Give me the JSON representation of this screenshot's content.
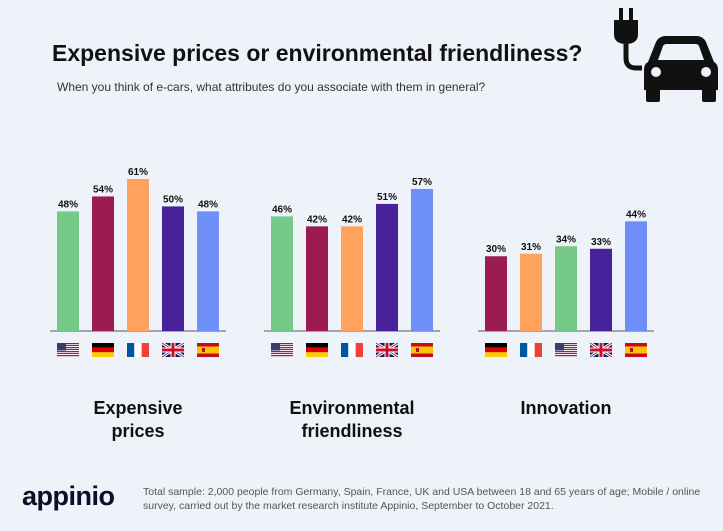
{
  "header": {
    "title": "Expensive prices or environmental friendliness?",
    "subtitle": "When you think of e-cars, what attributes do you associate with them in general?"
  },
  "icons": {
    "car": "ev-car-plug-icon"
  },
  "colors": {
    "background": "#eef2f9",
    "USA": "#77c98a",
    "Germany": "#9c1c52",
    "France": "#ffa35c",
    "UK": "#48229a",
    "Spain": "#6f8ff8",
    "axis": "#555555"
  },
  "chart_data": {
    "type": "bar",
    "title": "Expensive prices or environmental friendliness?",
    "subtitle": "When you think of e-cars, what attributes do you associate with them in general?",
    "ylim": [
      0,
      61
    ],
    "value_suffix": "%",
    "groups": [
      {
        "label_lines": [
          "Expensive",
          "prices"
        ],
        "bars": [
          {
            "country": "USA",
            "value": 48
          },
          {
            "country": "Germany",
            "value": 54
          },
          {
            "country": "France",
            "value": 61
          },
          {
            "country": "UK",
            "value": 50
          },
          {
            "country": "Spain",
            "value": 48
          }
        ]
      },
      {
        "label_lines": [
          "Environmental",
          "friendliness"
        ],
        "bars": [
          {
            "country": "USA",
            "value": 46
          },
          {
            "country": "Germany",
            "value": 42
          },
          {
            "country": "France",
            "value": 42
          },
          {
            "country": "UK",
            "value": 51
          },
          {
            "country": "Spain",
            "value": 57
          }
        ]
      },
      {
        "label_lines": [
          "Innovation"
        ],
        "bars": [
          {
            "country": "Germany",
            "value": 30
          },
          {
            "country": "France",
            "value": 31
          },
          {
            "country": "USA",
            "value": 34
          },
          {
            "country": "UK",
            "value": 33
          },
          {
            "country": "Spain",
            "value": 44
          }
        ]
      }
    ]
  },
  "footer": {
    "logo": "appinio",
    "note": "Total sample: 2,000 people from Germany, Spain, France, UK and USA between 18 and 65 years of age; Mobile / online survey, carried out by the market research institute Appinio, September to October 2021."
  }
}
